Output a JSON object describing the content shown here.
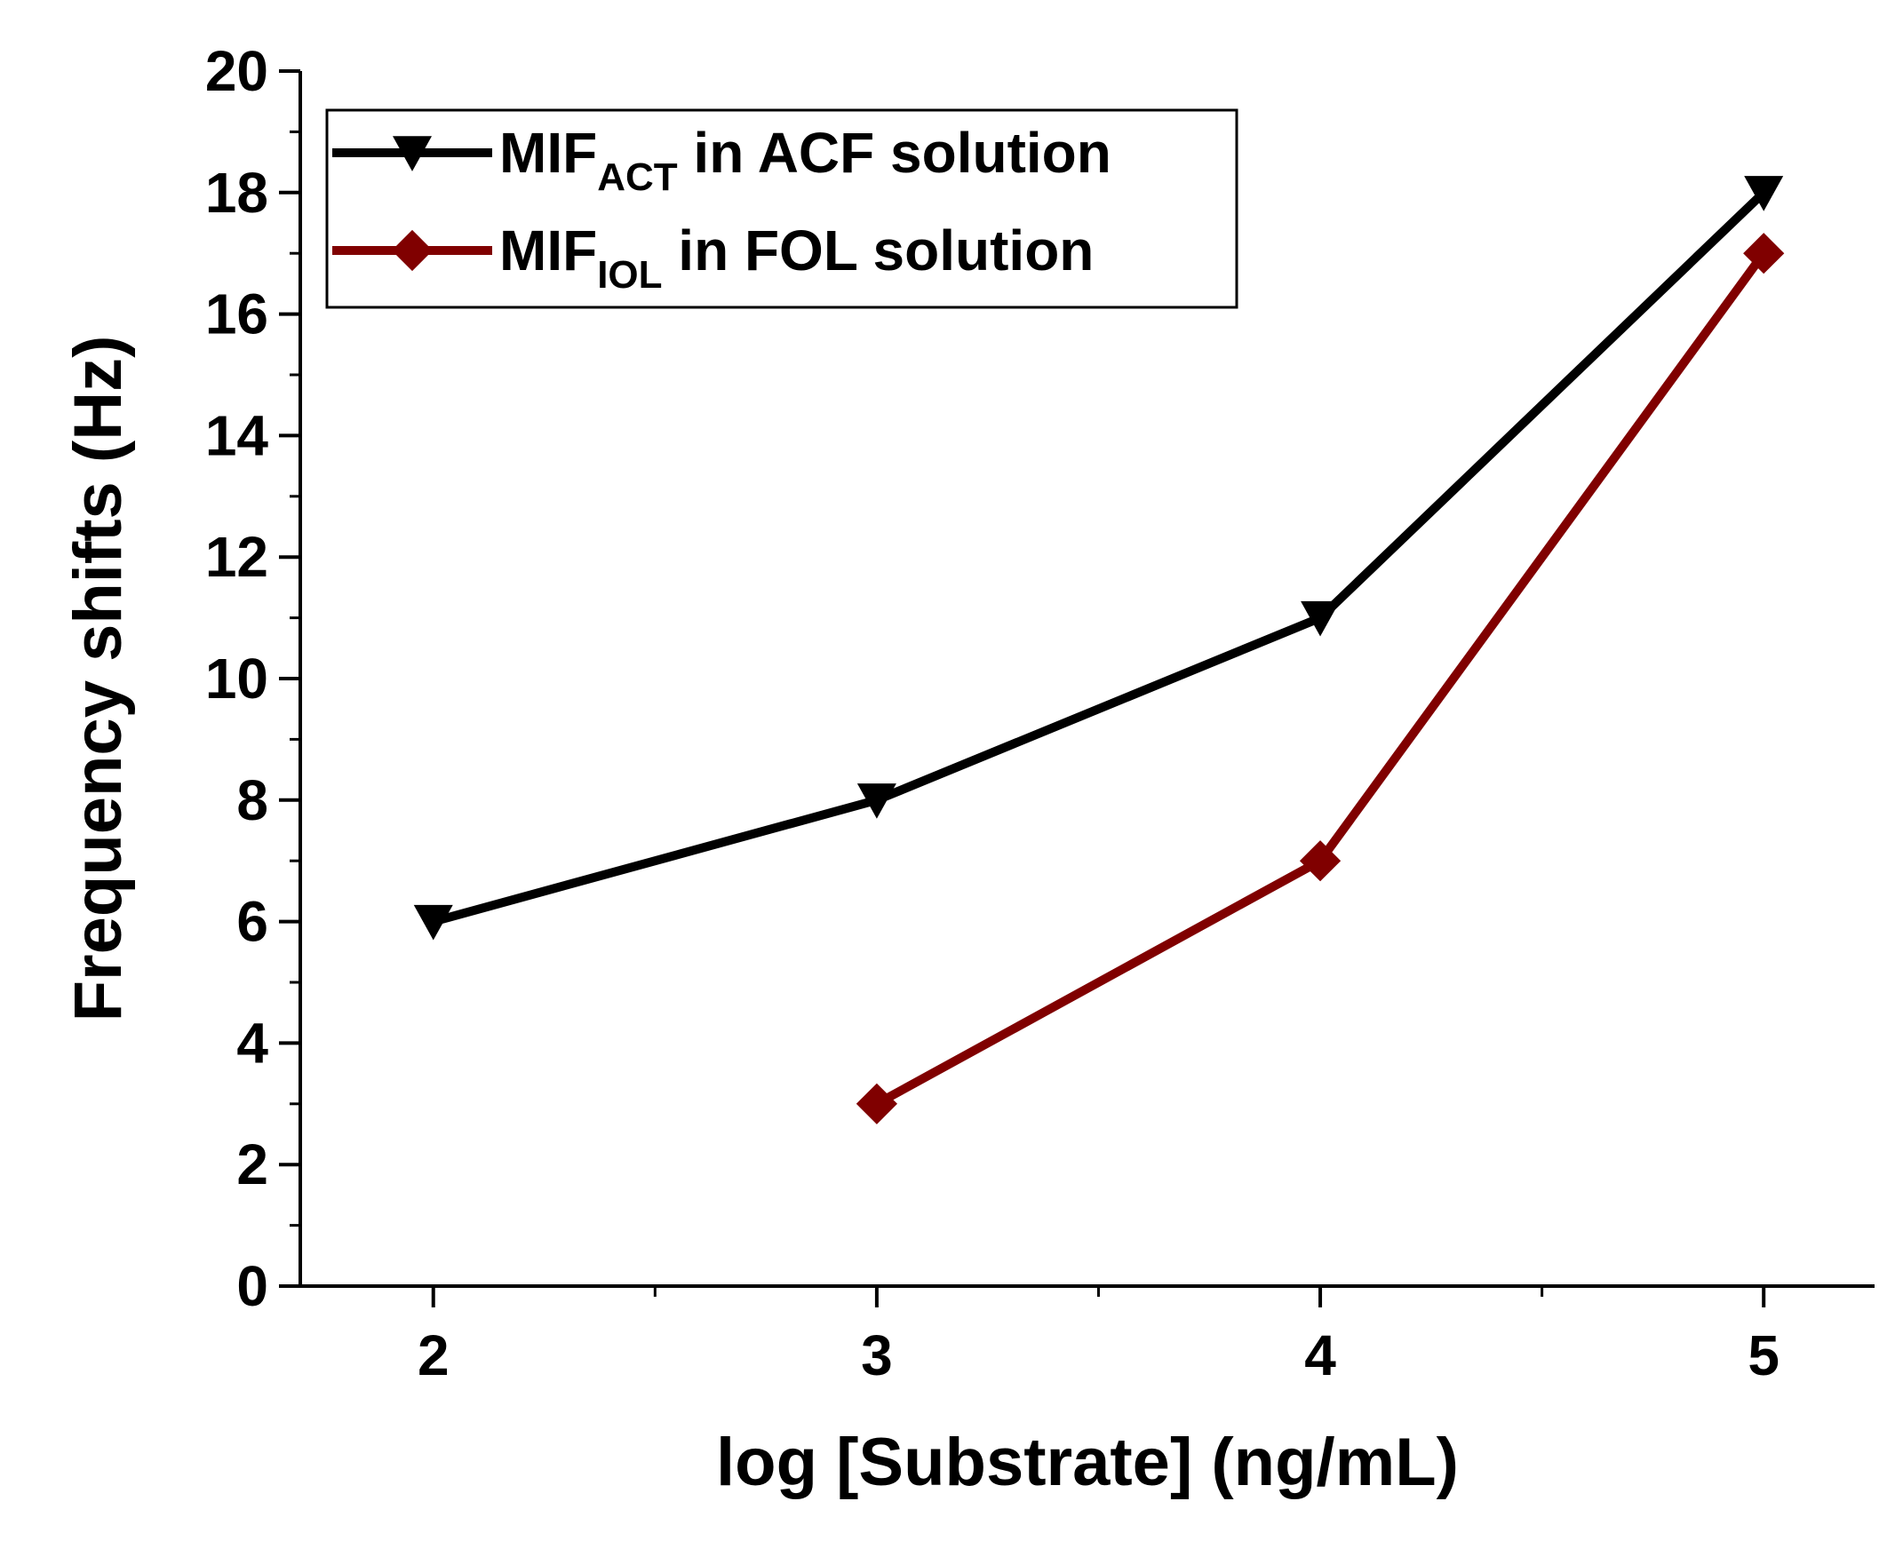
{
  "chart_data": {
    "type": "line",
    "title": "",
    "xlabel": "log [Substrate] (ng/mL)",
    "ylabel": "Frequency shifts (Hz)",
    "xlim": [
      1.7,
      5.25
    ],
    "ylim": [
      0,
      20
    ],
    "xticks": [
      2,
      3,
      4,
      5
    ],
    "yticks": [
      0,
      2,
      4,
      6,
      8,
      10,
      12,
      14,
      16,
      18,
      20
    ],
    "grid": false,
    "legend_position": "top-left",
    "series": [
      {
        "name": "MIF_ACT in ACF solution",
        "legend_main": "MIF",
        "legend_sub": "ACT",
        "legend_rest": " in ACF solution",
        "color": "#000000",
        "marker": "triangle-down",
        "x": [
          2,
          3,
          4,
          5
        ],
        "y": [
          6,
          8,
          11,
          18
        ]
      },
      {
        "name": "MIF_IOL in FOL solution",
        "legend_main": "MIF",
        "legend_sub": "IOL",
        "legend_rest": " in FOL solution",
        "color": "#800000",
        "marker": "diamond",
        "x": [
          3,
          4,
          5
        ],
        "y": [
          3,
          7,
          17
        ]
      }
    ]
  }
}
